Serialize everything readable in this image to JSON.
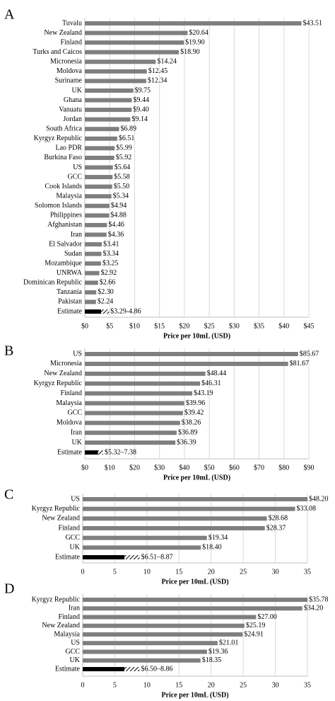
{
  "chart_data": [
    {
      "type": "bar",
      "orientation": "horizontal",
      "panel_label": "A",
      "categories": [
        "Tuvalu",
        "New Zealand",
        "Finland",
        "Turks and Caicos",
        "Micronesia",
        "Moldova",
        "Suriname",
        "UK",
        "Ghana",
        "Vanuatu",
        "Jordan",
        "South Africa",
        "Kyrgyz Republic",
        "Lao PDR",
        "Burkina Faso",
        "US",
        "GCC",
        "Cook Islands",
        "Malaysia",
        "Solomon Islands",
        "Philippines",
        "Afghanistan",
        "Iran",
        "El Salvador",
        "Sudan",
        "Mozambique",
        "UNRWA",
        "Dominican Republic",
        "Tanzania",
        "Pakistan"
      ],
      "values": [
        43.51,
        20.64,
        19.9,
        18.9,
        14.24,
        12.45,
        12.34,
        9.75,
        9.44,
        9.4,
        9.14,
        6.89,
        6.51,
        5.99,
        5.92,
        5.64,
        5.58,
        5.5,
        5.34,
        4.94,
        4.88,
        4.46,
        4.36,
        3.41,
        3.34,
        3.25,
        2.92,
        2.66,
        2.3,
        2.24
      ],
      "value_labels": [
        "$43.51",
        "$20.64",
        "$19.90",
        "$18.90",
        "$14.24",
        "$12.45",
        "$12.34",
        "$9.75",
        "$9.44",
        "$9.40",
        "$9.14",
        "$6.89",
        "$6.51",
        "$5.99",
        "$5.92",
        "$5.64",
        "$5.58",
        "$5.50",
        "$5.34",
        "$4.94",
        "$4.88",
        "$4.46",
        "$4.36",
        "$3.41",
        "$3.34",
        "$3.25",
        "$2.92",
        "$2.66",
        "$2.30",
        "$2.24"
      ],
      "color": "#7f7f7f",
      "estimate": {
        "name": "Estimate",
        "low": 3.29,
        "high": 4.86,
        "label": "$3.29-4.86"
      },
      "xlim": [
        0,
        45
      ],
      "xticks": [
        {
          "value": 0,
          "label": "$0"
        },
        {
          "value": 5,
          "label": "$5"
        },
        {
          "value": 10,
          "label": "$10"
        },
        {
          "value": 15,
          "label": "$15"
        },
        {
          "value": 20,
          "label": "$20"
        },
        {
          "value": 25,
          "label": "$25"
        },
        {
          "value": 30,
          "label": "$30"
        },
        {
          "value": 35,
          "label": "$35"
        },
        {
          "value": 40,
          "label": "$40"
        },
        {
          "value": 45,
          "label": "$45"
        }
      ],
      "x_label": "Price per 10mL (USD)",
      "grid": true
    },
    {
      "type": "bar",
      "orientation": "horizontal",
      "panel_label": "B",
      "categories": [
        "US",
        "Micronesia",
        "New Zealand",
        "Kyrgyz Republic",
        "Finland",
        "Malaysia",
        "GCC",
        "Moldova",
        "Iran",
        "UK"
      ],
      "values": [
        85.67,
        81.67,
        48.44,
        46.31,
        43.19,
        39.96,
        39.42,
        38.26,
        36.89,
        36.39
      ],
      "value_labels": [
        "$85.67",
        "$81.67",
        "$48.44",
        "$46.31",
        "$43.19",
        "$39.96",
        "$39.42",
        "$38.26",
        "$36.89",
        "$36.39"
      ],
      "color": "#7f7f7f",
      "estimate": {
        "name": "Estimate",
        "low": 5.32,
        "high": 7.38,
        "label": "$5.32–7.38"
      },
      "xlim": [
        0,
        90
      ],
      "xticks": [
        {
          "value": 0,
          "label": "$0"
        },
        {
          "value": 10,
          "label": "$10"
        },
        {
          "value": 20,
          "label": "$20"
        },
        {
          "value": 30,
          "label": "$30"
        },
        {
          "value": 40,
          "label": "$40"
        },
        {
          "value": 50,
          "label": "$50"
        },
        {
          "value": 60,
          "label": "$60"
        },
        {
          "value": 70,
          "label": "$70"
        },
        {
          "value": 80,
          "label": "$80"
        },
        {
          "value": 90,
          "label": "$90"
        }
      ],
      "x_label": "Price per 10mL (USD)",
      "grid": true
    },
    {
      "type": "bar",
      "orientation": "horizontal",
      "panel_label": "C",
      "categories": [
        "US",
        "Kyrgyz Republic",
        "New Zealand",
        "Finland",
        "GCC",
        "UK"
      ],
      "values": [
        48.2,
        33.08,
        28.68,
        28.37,
        19.34,
        18.4
      ],
      "value_labels": [
        "$48.20",
        "$33.08",
        "$28.68",
        "$28.37",
        "$19.34",
        "$18.40"
      ],
      "color": "#7f7f7f",
      "estimate": {
        "name": "Estimate",
        "low": 6.51,
        "high": 8.87,
        "label": "$6.51–8.87"
      },
      "xlim": [
        0,
        35
      ],
      "xticks": [
        0,
        5,
        10,
        15,
        20,
        25,
        30,
        35
      ],
      "x_label": "Price per 10mL (USD)",
      "grid": true
    },
    {
      "type": "bar",
      "orientation": "horizontal",
      "panel_label": "D",
      "categories": [
        "Kyrgyz Republic",
        "Iran",
        "Finland",
        "New Zealand",
        "Malaysia",
        "US",
        "GCC",
        "UK"
      ],
      "values": [
        35.78,
        34.2,
        27.0,
        25.19,
        24.91,
        21.01,
        19.36,
        18.35
      ],
      "value_labels": [
        "$35.78",
        "$34.20",
        "$27.00",
        "$25.19",
        "$24.91",
        "$21.01",
        "$19.36",
        "$18.35"
      ],
      "color": "#7f7f7f",
      "estimate": {
        "name": "Estimate",
        "low": 6.5,
        "high": 8.86,
        "label": "$6.50–8.86"
      },
      "xlim": [
        0,
        35
      ],
      "xticks": [
        0,
        5,
        10,
        15,
        20,
        25,
        30,
        35
      ],
      "x_label": "Price per 10mL (USD)",
      "grid": true
    }
  ]
}
